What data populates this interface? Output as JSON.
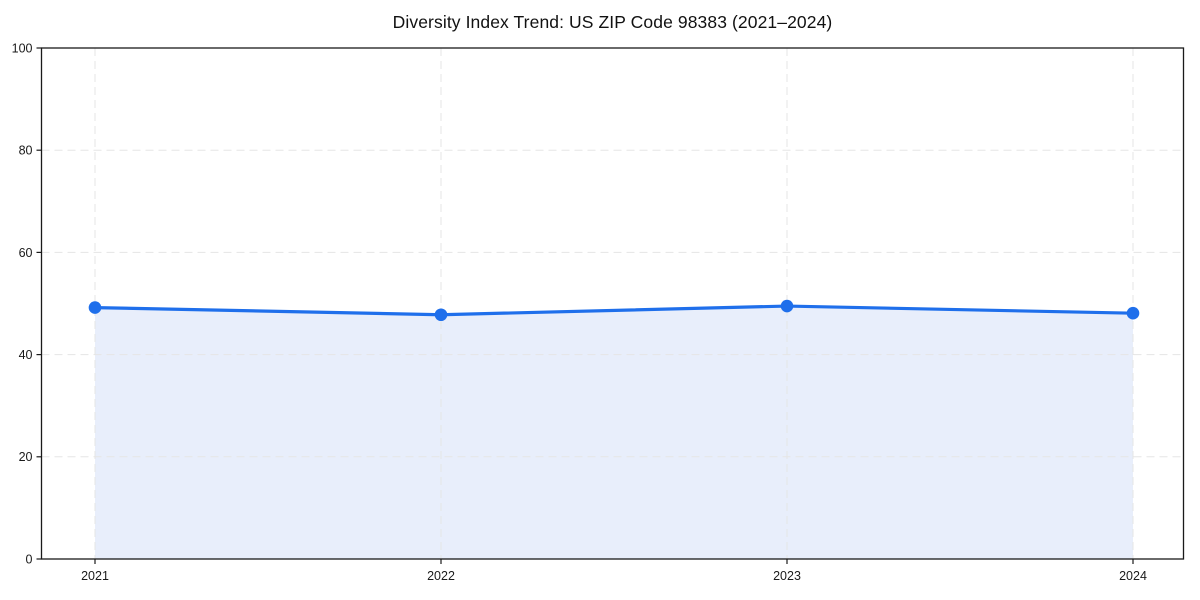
{
  "chart_data": {
    "type": "line",
    "title": "Diversity Index Trend: US ZIP Code 98383 (2021–2024)",
    "categories": [
      "2021",
      "2022",
      "2023",
      "2024"
    ],
    "values": [
      49.2,
      47.8,
      49.5,
      48.1
    ],
    "xlabel": "",
    "ylabel": "",
    "ylim": [
      0,
      100
    ],
    "yticks": [
      0,
      20,
      40,
      60,
      80,
      100
    ],
    "grid": true,
    "grid_style": "dashed",
    "legend_position": "none",
    "area_fill": true,
    "marker": "circle",
    "colors": {
      "line": "#1f6feb",
      "marker": "#1f6feb",
      "area": "#e8eefb",
      "grid": "#e5e5e5",
      "spine": "#1a1a1a",
      "tick_text": "#1a1a1a",
      "background": "#ffffff"
    }
  }
}
